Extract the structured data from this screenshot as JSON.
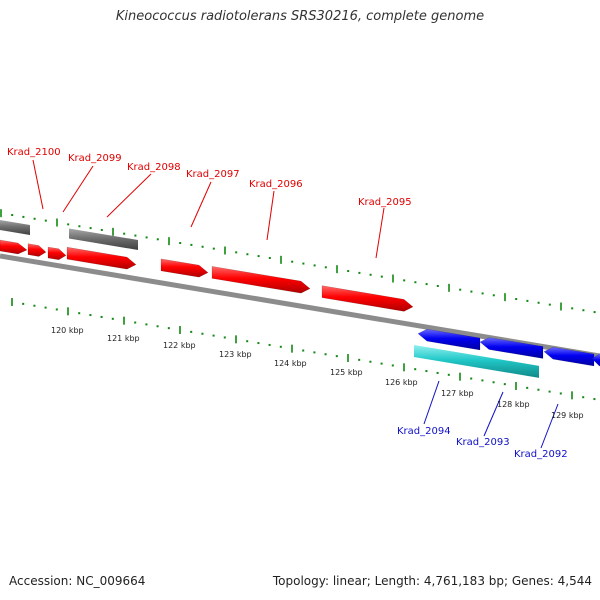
{
  "title": "Kineococcus radiotolerans SRS30216, complete genome",
  "footer": {
    "accession": "Accession: NC_009664",
    "summary": "Topology: linear; Length: 4,761,183 bp; Genes: 4,544"
  },
  "colors": {
    "forward_gene": "#ff0000",
    "reverse_gene": "#0000ee",
    "reverse_highlight_gene": "#20c8c8",
    "other_gene": "#707070",
    "backbone": "#8c8c8c",
    "tick": "#118811",
    "label_forward": "#e00000",
    "label_reverse": "#1010c8"
  },
  "scale": {
    "tick_labels": [
      "120 kbp",
      "121 kbp",
      "122 kbp",
      "123 kbp",
      "124 kbp",
      "125 kbp",
      "126 kbp",
      "127 kbp",
      "128 kbp",
      "129 kbp"
    ]
  },
  "genes": {
    "forward_labels": [
      "Krad_2100",
      "Krad_2099",
      "Krad_2098",
      "Krad_2097",
      "Krad_2096",
      "Krad_2095"
    ],
    "reverse_labels": [
      "Krad_2094",
      "Krad_2093",
      "Krad_2092"
    ]
  }
}
